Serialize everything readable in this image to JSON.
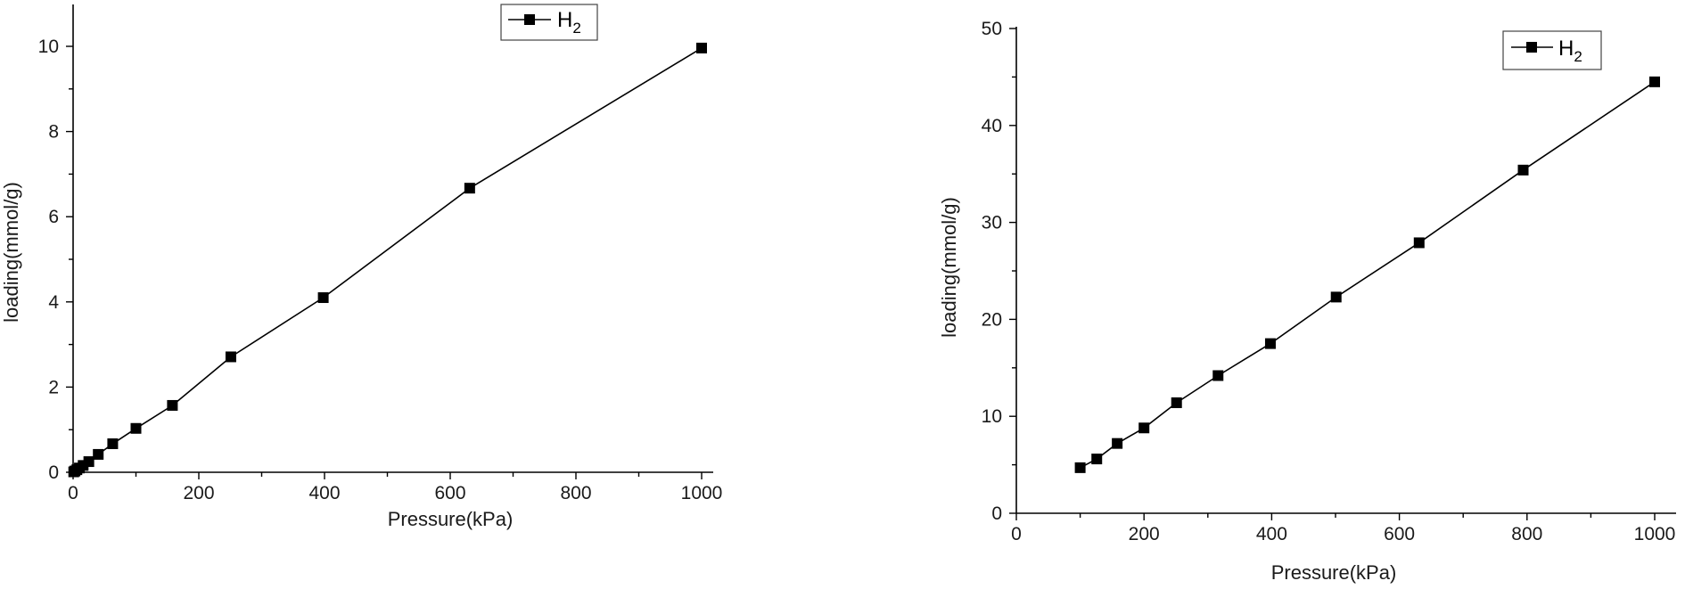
{
  "chart_data": [
    {
      "type": "line",
      "xlabel": "Pressure(kPa)",
      "ylabel": "loading(mmol/g)",
      "xlim": [
        0,
        1050
      ],
      "ylim": [
        0,
        11
      ],
      "xticks": [
        0,
        200,
        400,
        600,
        800,
        1000
      ],
      "yticks": [
        0,
        2,
        4,
        6,
        8,
        10
      ],
      "grid": false,
      "legend_placement": "top-right",
      "series": [
        {
          "name": "H2",
          "legend_main": "H",
          "legend_sub": "2",
          "x": [
            1,
            3,
            6,
            10,
            16,
            25,
            40,
            63,
            100,
            158,
            251,
            398,
            631,
            1000
          ],
          "values": [
            0.01,
            0.03,
            0.06,
            0.1,
            0.16,
            0.25,
            0.42,
            0.67,
            1.03,
            1.57,
            2.71,
            4.1,
            6.67,
            9.96
          ]
        }
      ]
    },
    {
      "type": "line",
      "xlabel": "Pressure(kPa)",
      "ylabel": "loading(mmol/g)",
      "xlim": [
        0,
        1050
      ],
      "ylim": [
        0,
        50
      ],
      "xticks": [
        0,
        200,
        400,
        600,
        800,
        1000
      ],
      "yticks": [
        0,
        10,
        20,
        30,
        40,
        50
      ],
      "grid": false,
      "legend_placement": "top-right",
      "series": [
        {
          "name": "H2",
          "legend_main": "H",
          "legend_sub": "2",
          "x": [
            100,
            126,
            158,
            200,
            251,
            316,
            398,
            501,
            631,
            794,
            1000
          ],
          "values": [
            4.7,
            5.6,
            7.2,
            8.8,
            11.4,
            14.2,
            17.5,
            22.3,
            27.9,
            35.4,
            44.5
          ]
        }
      ]
    }
  ]
}
